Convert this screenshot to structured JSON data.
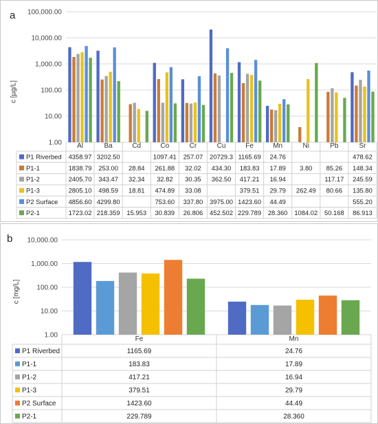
{
  "chart_data": [
    {
      "type": "bar",
      "panel": "a",
      "ylabel": "c [µg/L]",
      "yscale": "log",
      "ylim": [
        1,
        100000
      ],
      "yticks": [
        "1.00",
        "10.00",
        "100.00",
        "1,000.00",
        "10,000.00",
        "100,000.00"
      ],
      "categories": [
        "Al",
        "Ba",
        "Cd",
        "Co",
        "Cr",
        "Cu",
        "Fe",
        "Mn",
        "Ni",
        "Pb",
        "Sr"
      ],
      "legend_position": "table-left",
      "grid": true,
      "series": [
        {
          "name": "P1 Riverbed",
          "color": "#4f6bc4",
          "values": [
            4358.97,
            3202.5,
            null,
            1097.41,
            257.07,
            20729.3,
            1165.69,
            24.76,
            null,
            null,
            478.62
          ],
          "labels": [
            "4358.97",
            "3202.50",
            "",
            "1097.41",
            "257.07",
            "20729.3",
            "1165.69",
            "24.76",
            "",
            "",
            "478.62"
          ]
        },
        {
          "name": "P1-1",
          "color": "#c97c39",
          "values": [
            1838.79,
            253.0,
            28.84,
            261.88,
            32.02,
            434.3,
            183.83,
            17.89,
            3.8,
            85.26,
            148.34
          ],
          "labels": [
            "1838.79",
            "253.00",
            "28.84",
            "261.88",
            "32.02",
            "434.30",
            "183.83",
            "17.89",
            "3.80",
            "85.26",
            "148.34"
          ]
        },
        {
          "name": "P1-2",
          "color": "#a5a5a5",
          "values": [
            2405.7,
            343.47,
            32.34,
            32.82,
            30.35,
            362.5,
            417.21,
            16.94,
            null,
            117.17,
            245.59
          ],
          "labels": [
            "2405.70",
            "343.47",
            "32.34",
            "32.82",
            "30.35",
            "362.50",
            "417.21",
            "16.94",
            "",
            "117.17",
            "245.59"
          ]
        },
        {
          "name": "P1-3",
          "color": "#e8c21f",
          "values": [
            2805.1,
            498.59,
            18.81,
            474.89,
            33.08,
            null,
            379.51,
            29.79,
            262.49,
            80.66,
            135.8
          ],
          "labels": [
            "2805.10",
            "498.59",
            "18.81",
            "474.89",
            "33.08",
            "",
            "379.51",
            "29.79",
            "262.49",
            "80.66",
            "135.80"
          ]
        },
        {
          "name": "P2 Surface",
          "color": "#5b8fd6",
          "values": [
            4856.6,
            4299.8,
            null,
            753.6,
            337.8,
            3975.0,
            1423.6,
            44.49,
            null,
            null,
            555.2
          ],
          "labels": [
            "4856.60",
            "4299.80",
            "",
            "753.60",
            "337.80",
            "3975.00",
            "1423.60",
            "44.49",
            "",
            "",
            "555.20"
          ]
        },
        {
          "name": "P2-1",
          "color": "#6aa84f",
          "values": [
            1723.02,
            218.359,
            15.953,
            30.839,
            26.806,
            452.502,
            229.789,
            28.36,
            1084.02,
            50.168,
            86.913
          ],
          "labels": [
            "1723.02",
            "218.359",
            "15.953",
            "30.839",
            "26.806",
            "452.502",
            "229.789",
            "28.360",
            "1084.02",
            "50.168",
            "86.913"
          ]
        }
      ]
    },
    {
      "type": "bar",
      "panel": "b",
      "ylabel": "c [mg/L]",
      "yscale": "log",
      "ylim": [
        1,
        10000
      ],
      "yticks": [
        "1.00",
        "10.00",
        "100.00",
        "1,000.00",
        "10,000.00"
      ],
      "categories": [
        "Fe",
        "Mn"
      ],
      "legend_position": "table-left",
      "grid": true,
      "series": [
        {
          "name": "P1 Riverbed",
          "color": "#4f6bc4",
          "values": [
            1165.69,
            24.76
          ],
          "labels": [
            "1165.69",
            "24.76"
          ]
        },
        {
          "name": "P1-1",
          "color": "#5b9bd5",
          "values": [
            183.83,
            17.89
          ],
          "labels": [
            "183.83",
            "17.89"
          ]
        },
        {
          "name": "P1-2",
          "color": "#a5a5a5",
          "values": [
            417.21,
            16.94
          ],
          "labels": [
            "417.21",
            "16.94"
          ]
        },
        {
          "name": "P1-3",
          "color": "#f5c000",
          "values": [
            379.51,
            29.79
          ],
          "labels": [
            "379.51",
            "29.79"
          ]
        },
        {
          "name": "P2 Surface",
          "color": "#ed7d31",
          "values": [
            1423.6,
            44.49
          ],
          "labels": [
            "1423.60",
            "44.49"
          ]
        },
        {
          "name": "P2-1",
          "color": "#6aa84f",
          "values": [
            229.789,
            28.36
          ],
          "labels": [
            "229.789",
            "28.360"
          ]
        }
      ]
    }
  ],
  "panels": {
    "a": {
      "letter": "a"
    },
    "b": {
      "letter": "b"
    }
  }
}
